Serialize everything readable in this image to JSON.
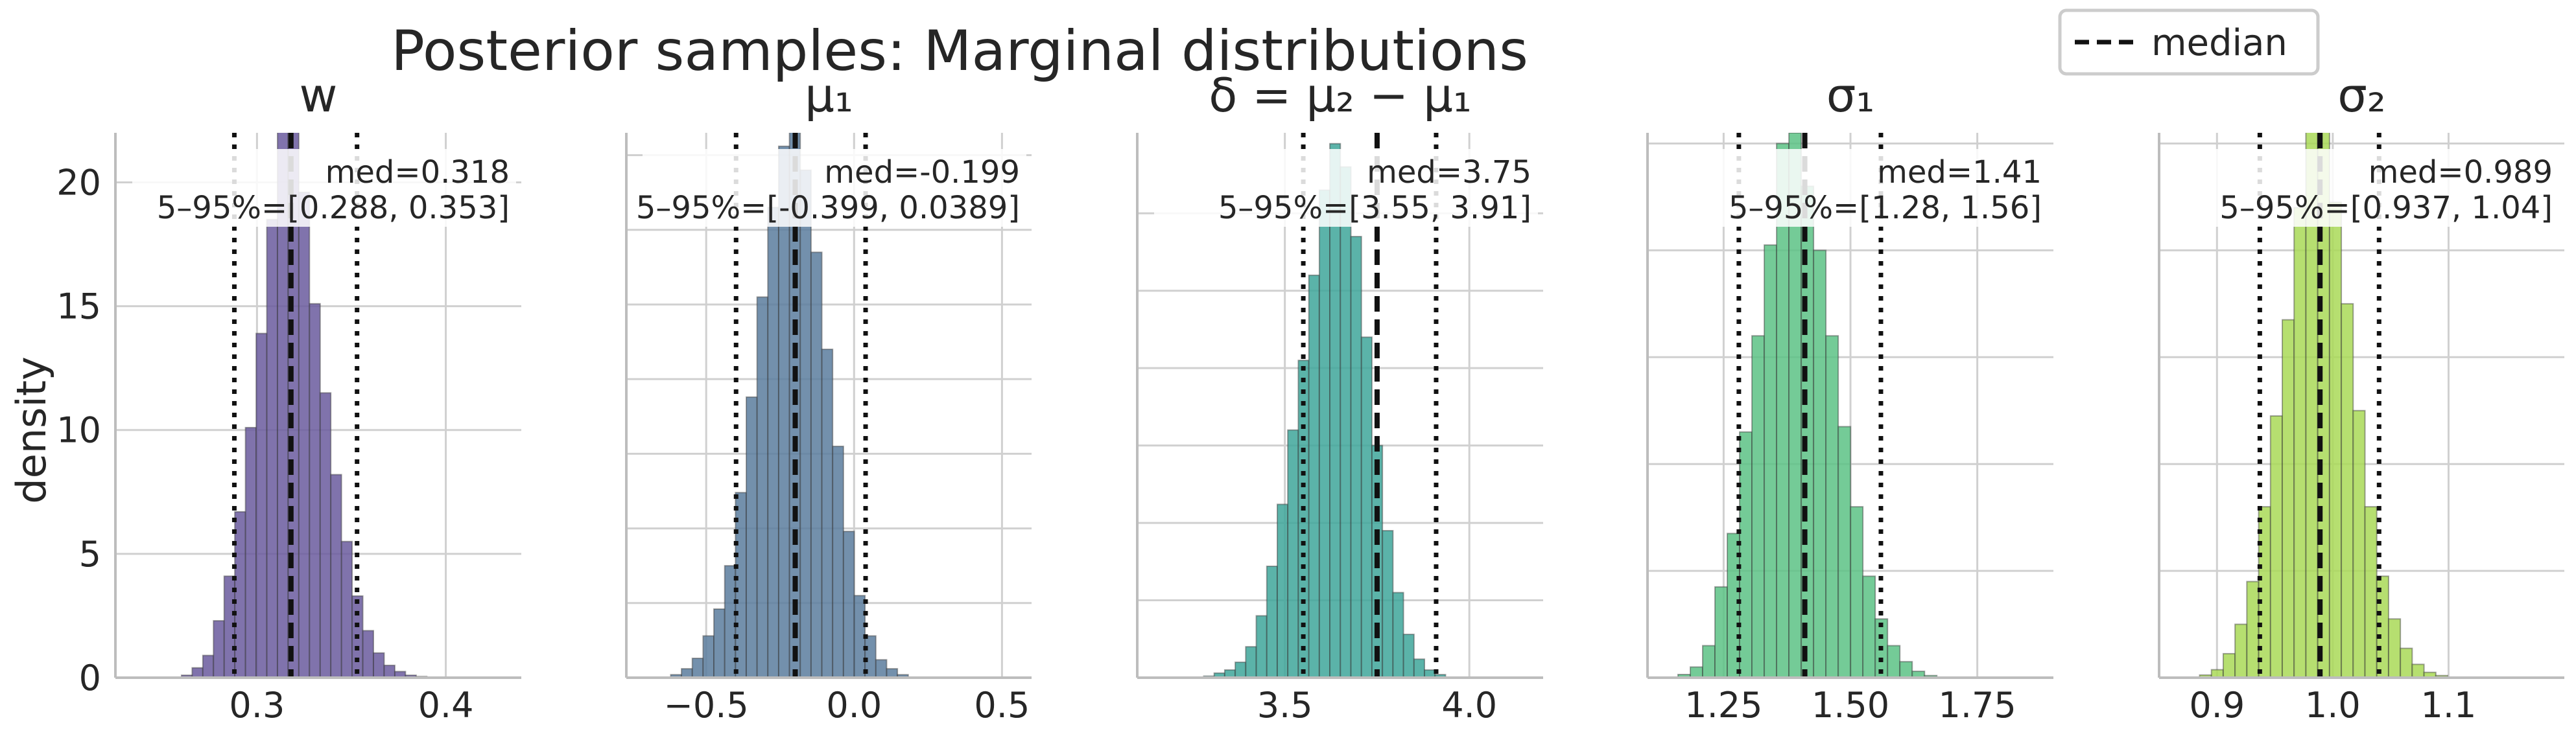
{
  "figure": {
    "suptitle": "Posterior samples: Marginal distributions",
    "ylabel": "density",
    "legend": {
      "label": "median",
      "line_style": "dashed",
      "placement": "top-right"
    }
  },
  "chart_data": [
    {
      "type": "histogram",
      "title": "w",
      "color": "#6a5a9e",
      "xlim": [
        0.225,
        0.44
      ],
      "ylim": [
        0,
        22
      ],
      "xticks": [
        0.3,
        0.4
      ],
      "xtick_labels": [
        "0.3",
        "0.4"
      ],
      "yticks": [
        0,
        5,
        10,
        15,
        20
      ],
      "ytick_labels": [
        "0",
        "5",
        "10",
        "15",
        "20"
      ],
      "median": 0.318,
      "q05": 0.288,
      "q95": 0.353,
      "annotation": [
        "med=0.318",
        "5–95%=[0.288, 0.353]"
      ],
      "bins": {
        "start": 0.26,
        "width": 0.00565
      },
      "values": [
        0.1,
        0.4,
        0.9,
        2.3,
        4.1,
        6.7,
        10.1,
        13.9,
        18.5,
        24,
        23,
        19.6,
        15.1,
        11.5,
        8.2,
        5.5,
        3.3,
        1.9,
        1.0,
        0.5,
        0.25,
        0.1,
        0.05
      ]
    },
    {
      "type": "histogram",
      "title": "μ₁",
      "color": "#5b7d9e",
      "xlim": [
        -0.77,
        0.6
      ],
      "ylim": [
        0,
        3.65
      ],
      "xticks": [
        -0.5,
        0.0,
        0.5
      ],
      "xtick_labels": [
        "−0.5",
        "0.0",
        "0.5"
      ],
      "yticks": [
        0.5,
        1.0,
        1.5,
        2.0,
        2.5,
        3.0,
        3.5
      ],
      "ytick_labels": [],
      "median": -0.199,
      "q05": -0.399,
      "q95": 0.0389,
      "annotation": [
        "med=-0.199",
        "5–95%=[-0.399, 0.0389]"
      ],
      "bins": {
        "start": -0.62,
        "width": 0.0365
      },
      "values": [
        0.02,
        0.06,
        0.13,
        0.28,
        0.46,
        0.75,
        1.24,
        1.88,
        2.55,
        3.15,
        3.56,
        3.85,
        3.4,
        2.85,
        2.2,
        1.55,
        0.98,
        0.55,
        0.28,
        0.12,
        0.06,
        0.02
      ]
    },
    {
      "type": "histogram",
      "title": "δ = μ₂ − μ₁",
      "color": "#3ea69a",
      "xlim": [
        3.1,
        4.2
      ],
      "ylim": [
        0,
        3.52
      ],
      "xticks": [
        3.5,
        4.0
      ],
      "xtick_labels": [
        "3.5",
        "4.0"
      ],
      "yticks": [
        0.5,
        1.0,
        1.5,
        2.0,
        2.5,
        3.0
      ],
      "ytick_labels": [],
      "median": 3.75,
      "q05": 3.55,
      "q95": 3.91,
      "annotation": [
        "med=3.75",
        "5–95%=[3.55, 3.91]"
      ],
      "bins": {
        "start": 3.28,
        "width": 0.0285
      },
      "values": [
        0.01,
        0.03,
        0.05,
        0.1,
        0.2,
        0.4,
        0.72,
        1.12,
        1.6,
        2.05,
        2.6,
        3.15,
        3.45,
        3.3,
        2.85,
        2.2,
        1.5,
        0.95,
        0.55,
        0.28,
        0.12,
        0.05,
        0.02
      ]
    },
    {
      "type": "histogram",
      "title": "σ₁",
      "color": "#5cc285",
      "xlim": [
        1.1,
        1.9
      ],
      "ylim": [
        0,
        5.1
      ],
      "xticks": [
        1.25,
        1.5,
        1.75
      ],
      "xtick_labels": [
        "1.25",
        "1.50",
        "1.75"
      ],
      "yticks": [
        1,
        2,
        3,
        4,
        5
      ],
      "ytick_labels": [],
      "median": 1.41,
      "q05": 1.28,
      "q95": 1.56,
      "annotation": [
        "med=1.41",
        "5–95%=[1.28, 1.56]"
      ],
      "bins": {
        "start": 1.16,
        "width": 0.0243
      },
      "values": [
        0.03,
        0.1,
        0.3,
        0.85,
        1.35,
        2.3,
        3.2,
        4.05,
        5.0,
        5.1,
        4.6,
        4.0,
        3.2,
        2.35,
        1.6,
        0.95,
        0.55,
        0.3,
        0.15,
        0.06,
        0.02
      ]
    },
    {
      "type": "histogram",
      "title": "σ₂",
      "color": "#a9d957",
      "xlim": [
        0.85,
        1.2
      ],
      "ylim": [
        0,
        10.2
      ],
      "xticks": [
        0.9,
        1.0,
        1.1
      ],
      "xtick_labels": [
        "0.9",
        "1.0",
        "1.1"
      ],
      "yticks": [
        2,
        4,
        6,
        8,
        10
      ],
      "ytick_labels": [],
      "median": 0.989,
      "q05": 0.937,
      "q95": 1.04,
      "annotation": [
        "med=0.989",
        "5–95%=[0.937, 1.04]"
      ],
      "bins": {
        "start": 0.885,
        "width": 0.0102
      },
      "values": [
        0.05,
        0.15,
        0.45,
        1.0,
        1.8,
        3.2,
        4.9,
        6.7,
        8.8,
        10.6,
        10.3,
        8.9,
        7.0,
        5.0,
        3.2,
        1.9,
        1.1,
        0.55,
        0.25,
        0.1,
        0.04
      ]
    }
  ]
}
